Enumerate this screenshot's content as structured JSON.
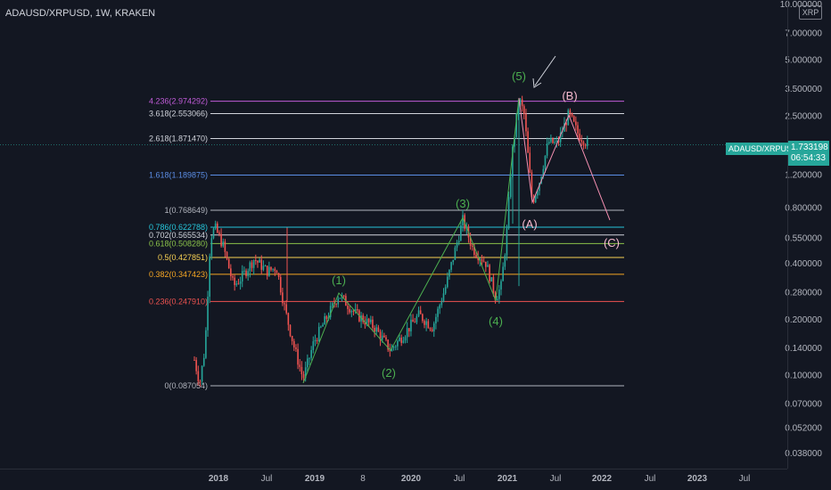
{
  "header": {
    "title": "ADAUSD/XRPUSD, 1W, KRAKEN"
  },
  "price_axis": {
    "quote_badge": "XRP"
  },
  "last_price": {
    "symbol_tag": "ADAUSD/XRPUSD",
    "value": "1.733198",
    "countdown": "06:54:33"
  },
  "chart_data": {
    "type": "candlestick",
    "title": "ADAUSD/XRPUSD, 1W, KRAKEN",
    "y_scale": "log",
    "ylim": [
      0.034,
      10.0
    ],
    "y_ticks": [
      "10.000000",
      "7.000000",
      "5.000000",
      "3.500000",
      "2.500000",
      "1.200000",
      "0.800000",
      "0.550000",
      "0.400000",
      "0.280000",
      "0.200000",
      "0.140000",
      "0.100000",
      "0.070000",
      "0.052000",
      "0.038000"
    ],
    "x_ticks": [
      "2018",
      "Jul",
      "2019",
      "8",
      "2020",
      "Jul",
      "2021",
      "Jul",
      "2022",
      "Jul",
      "2023",
      "Jul"
    ],
    "fib_levels": [
      {
        "label": "4.236(2.974292)",
        "value": 2.974292,
        "color": "#c05bd8"
      },
      {
        "label": "3.618(2.553066)",
        "value": 2.553066,
        "color": "#d1d4dc"
      },
      {
        "label": "2.618(1.871470)",
        "value": 1.87147,
        "color": "#d1d4dc"
      },
      {
        "label": "1.618(1.189875)",
        "value": 1.189875,
        "color": "#5b8ee6"
      },
      {
        "label": "1(0.768649)",
        "value": 0.768649,
        "color": "#b2b5be"
      },
      {
        "label": "0.786(0.622788)",
        "value": 0.622788,
        "color": "#26c6da"
      },
      {
        "label": "0.702(0.565534)",
        "value": 0.565534,
        "color": "#d1d4dc"
      },
      {
        "label": "0.618(0.508280)",
        "value": 0.50828,
        "color": "#8bc34a"
      },
      {
        "label": "0.5(0.427851)",
        "value": 0.427851,
        "color": "#f7d154"
      },
      {
        "label": "0.382(0.347423)",
        "value": 0.347423,
        "color": "#f5a623"
      },
      {
        "label": "0.236(0.247910)",
        "value": 0.24791,
        "color": "#ef5350"
      },
      {
        "label": "0(0.087054)",
        "value": 0.087054,
        "color": "#b2b5be"
      }
    ],
    "wave_labels": [
      {
        "text": "(1)",
        "color": "#4caf50"
      },
      {
        "text": "(2)",
        "color": "#4caf50"
      },
      {
        "text": "(3)",
        "color": "#4caf50"
      },
      {
        "text": "(4)",
        "color": "#4caf50"
      },
      {
        "text": "(5)",
        "color": "#4caf50"
      },
      {
        "text": "(A)",
        "color": "#f8bbd0"
      },
      {
        "text": "(B)",
        "color": "#f8bbd0"
      },
      {
        "text": "(C)",
        "color": "#f8bbd0"
      }
    ],
    "colors": {
      "up": "#26a69a",
      "down": "#ef5350",
      "background": "#131722"
    }
  }
}
